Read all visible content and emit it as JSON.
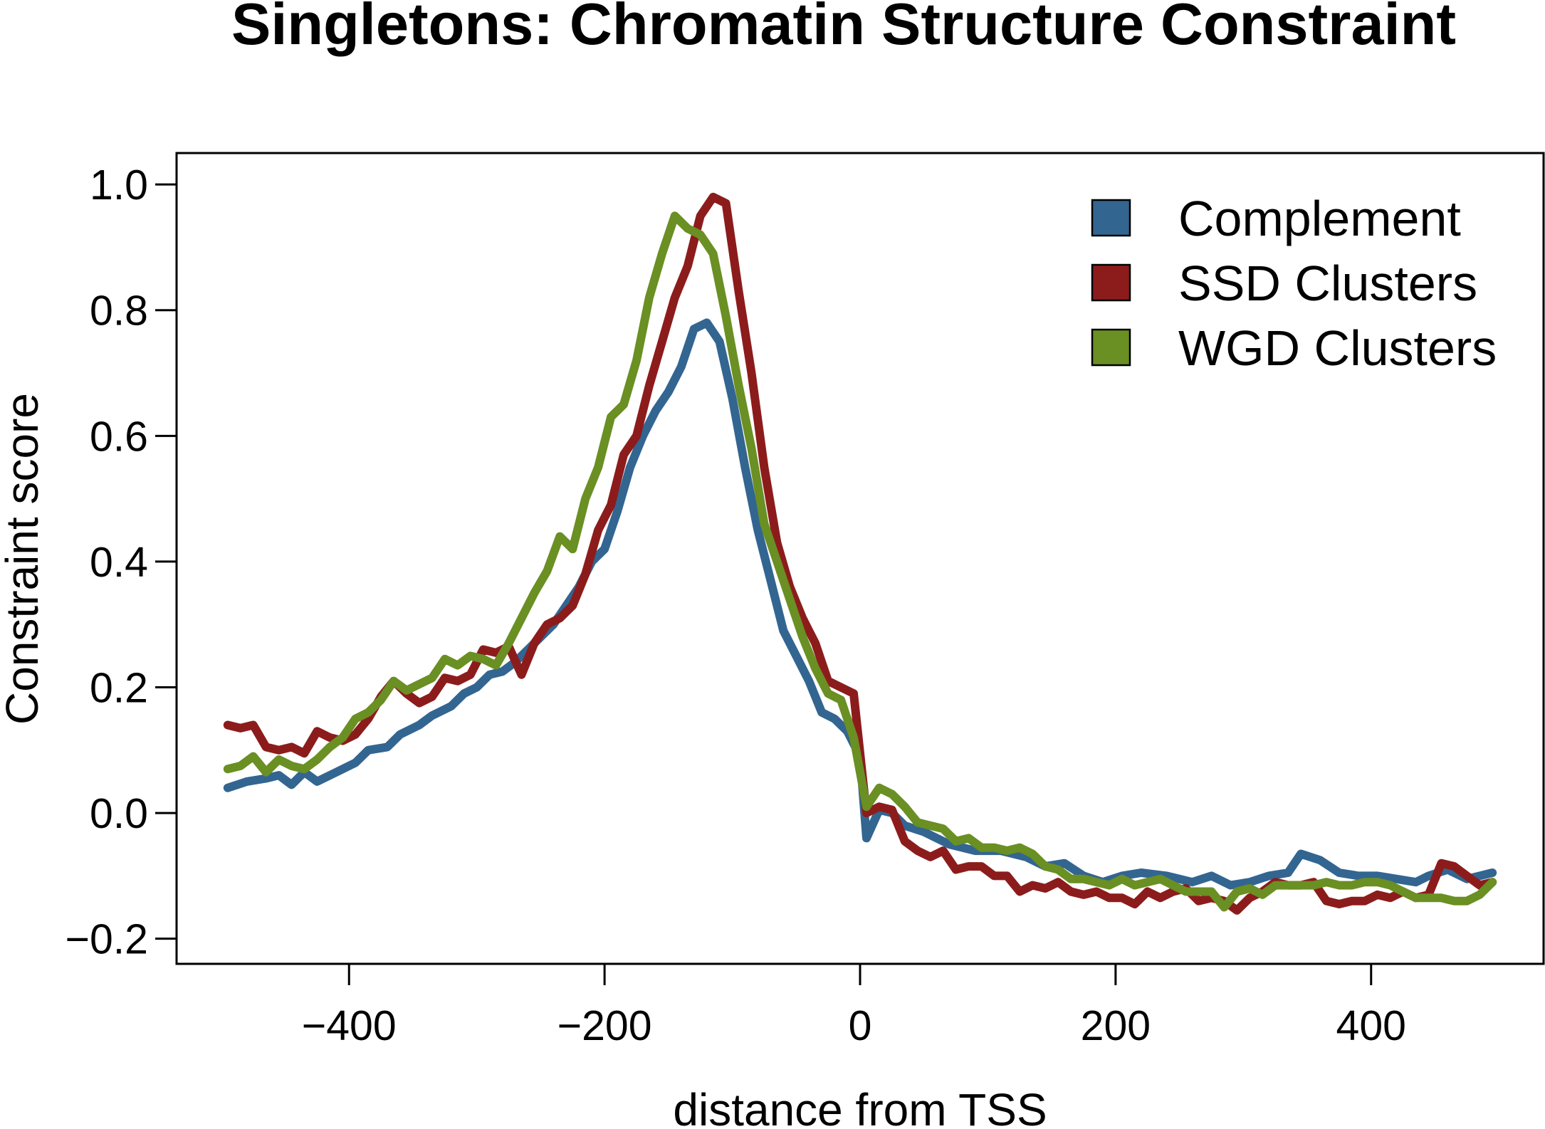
{
  "chart_data": {
    "type": "line",
    "title": "Singletons: Chromatin Structure Constraint",
    "xlabel": "distance from TSS",
    "ylabel": "Constraint score",
    "xlim": [
      -535,
      535
    ],
    "ylim": [
      -0.24,
      1.05
    ],
    "x_ticks": [
      -400,
      -200,
      0,
      200,
      400
    ],
    "x_tick_labels": [
      "−400",
      "−200",
      "0",
      "200",
      "400"
    ],
    "y_ticks": [
      -0.2,
      0.0,
      0.2,
      0.4,
      0.6,
      0.8,
      1.0
    ],
    "y_tick_labels": [
      "−0.2",
      "0.0",
      "0.2",
      "0.4",
      "0.6",
      "0.8",
      "1.0"
    ],
    "grid": false,
    "legend_position": "top-right",
    "series": [
      {
        "name": "Complement",
        "color": "#336591",
        "points": [
          [
            -495,
            0.04
          ],
          [
            -480,
            0.05
          ],
          [
            -465,
            0.055
          ],
          [
            -455,
            0.06
          ],
          [
            -445,
            0.045
          ],
          [
            -435,
            0.065
          ],
          [
            -425,
            0.05
          ],
          [
            -410,
            0.065
          ],
          [
            -395,
            0.08
          ],
          [
            -385,
            0.1
          ],
          [
            -370,
            0.105
          ],
          [
            -360,
            0.125
          ],
          [
            -345,
            0.14
          ],
          [
            -335,
            0.155
          ],
          [
            -320,
            0.17
          ],
          [
            -310,
            0.19
          ],
          [
            -300,
            0.2
          ],
          [
            -290,
            0.22
          ],
          [
            -280,
            0.225
          ],
          [
            -270,
            0.24
          ],
          [
            -260,
            0.26
          ],
          [
            -250,
            0.28
          ],
          [
            -240,
            0.3
          ],
          [
            -230,
            0.33
          ],
          [
            -220,
            0.36
          ],
          [
            -210,
            0.4
          ],
          [
            -200,
            0.42
          ],
          [
            -190,
            0.48
          ],
          [
            -180,
            0.55
          ],
          [
            -170,
            0.6
          ],
          [
            -160,
            0.64
          ],
          [
            -150,
            0.67
          ],
          [
            -140,
            0.71
          ],
          [
            -130,
            0.77
          ],
          [
            -120,
            0.78
          ],
          [
            -110,
            0.75
          ],
          [
            -100,
            0.66
          ],
          [
            -90,
            0.55
          ],
          [
            -80,
            0.45
          ],
          [
            -70,
            0.37
          ],
          [
            -60,
            0.29
          ],
          [
            -50,
            0.25
          ],
          [
            -40,
            0.21
          ],
          [
            -30,
            0.16
          ],
          [
            -20,
            0.15
          ],
          [
            -10,
            0.13
          ],
          [
            0,
            0.09
          ],
          [
            5,
            -0.04
          ],
          [
            15,
            0.005
          ],
          [
            25,
            0.0
          ],
          [
            35,
            -0.02
          ],
          [
            50,
            -0.03
          ],
          [
            70,
            -0.05
          ],
          [
            90,
            -0.06
          ],
          [
            110,
            -0.06
          ],
          [
            130,
            -0.07
          ],
          [
            145,
            -0.085
          ],
          [
            160,
            -0.08
          ],
          [
            175,
            -0.1
          ],
          [
            190,
            -0.11
          ],
          [
            205,
            -0.1
          ],
          [
            220,
            -0.095
          ],
          [
            240,
            -0.1
          ],
          [
            260,
            -0.11
          ],
          [
            275,
            -0.1
          ],
          [
            290,
            -0.115
          ],
          [
            305,
            -0.11
          ],
          [
            320,
            -0.1
          ],
          [
            335,
            -0.095
          ],
          [
            345,
            -0.065
          ],
          [
            360,
            -0.075
          ],
          [
            375,
            -0.095
          ],
          [
            390,
            -0.1
          ],
          [
            405,
            -0.1
          ],
          [
            420,
            -0.105
          ],
          [
            435,
            -0.11
          ],
          [
            445,
            -0.1
          ],
          [
            460,
            -0.09
          ],
          [
            475,
            -0.105
          ],
          [
            485,
            -0.1
          ],
          [
            495,
            -0.095
          ]
        ]
      },
      {
        "name": "SSD Clusters",
        "color": "#8c1c1c",
        "points": [
          [
            -495,
            0.14
          ],
          [
            -485,
            0.135
          ],
          [
            -475,
            0.14
          ],
          [
            -465,
            0.105
          ],
          [
            -455,
            0.1
          ],
          [
            -445,
            0.105
          ],
          [
            -435,
            0.095
          ],
          [
            -425,
            0.13
          ],
          [
            -415,
            0.12
          ],
          [
            -405,
            0.115
          ],
          [
            -395,
            0.125
          ],
          [
            -385,
            0.15
          ],
          [
            -375,
            0.185
          ],
          [
            -365,
            0.21
          ],
          [
            -355,
            0.19
          ],
          [
            -345,
            0.175
          ],
          [
            -335,
            0.185
          ],
          [
            -325,
            0.215
          ],
          [
            -315,
            0.21
          ],
          [
            -305,
            0.22
          ],
          [
            -295,
            0.26
          ],
          [
            -285,
            0.255
          ],
          [
            -275,
            0.265
          ],
          [
            -265,
            0.22
          ],
          [
            -255,
            0.27
          ],
          [
            -245,
            0.3
          ],
          [
            -235,
            0.31
          ],
          [
            -225,
            0.33
          ],
          [
            -215,
            0.38
          ],
          [
            -205,
            0.45
          ],
          [
            -195,
            0.49
          ],
          [
            -185,
            0.57
          ],
          [
            -175,
            0.6
          ],
          [
            -165,
            0.68
          ],
          [
            -155,
            0.75
          ],
          [
            -145,
            0.82
          ],
          [
            -135,
            0.87
          ],
          [
            -125,
            0.95
          ],
          [
            -115,
            0.98
          ],
          [
            -105,
            0.97
          ],
          [
            -95,
            0.83
          ],
          [
            -85,
            0.7
          ],
          [
            -75,
            0.55
          ],
          [
            -65,
            0.43
          ],
          [
            -55,
            0.36
          ],
          [
            -45,
            0.31
          ],
          [
            -35,
            0.27
          ],
          [
            -25,
            0.21
          ],
          [
            -15,
            0.2
          ],
          [
            -5,
            0.19
          ],
          [
            5,
            0.0
          ],
          [
            15,
            0.01
          ],
          [
            25,
            0.005
          ],
          [
            35,
            -0.045
          ],
          [
            45,
            -0.06
          ],
          [
            55,
            -0.07
          ],
          [
            65,
            -0.06
          ],
          [
            75,
            -0.09
          ],
          [
            85,
            -0.085
          ],
          [
            95,
            -0.085
          ],
          [
            105,
            -0.1
          ],
          [
            115,
            -0.1
          ],
          [
            125,
            -0.125
          ],
          [
            135,
            -0.115
          ],
          [
            145,
            -0.12
          ],
          [
            155,
            -0.11
          ],
          [
            165,
            -0.125
          ],
          [
            175,
            -0.13
          ],
          [
            185,
            -0.125
          ],
          [
            195,
            -0.135
          ],
          [
            205,
            -0.135
          ],
          [
            215,
            -0.145
          ],
          [
            225,
            -0.125
          ],
          [
            235,
            -0.135
          ],
          [
            245,
            -0.125
          ],
          [
            255,
            -0.12
          ],
          [
            265,
            -0.14
          ],
          [
            275,
            -0.135
          ],
          [
            285,
            -0.14
          ],
          [
            295,
            -0.155
          ],
          [
            305,
            -0.135
          ],
          [
            315,
            -0.125
          ],
          [
            325,
            -0.11
          ],
          [
            335,
            -0.115
          ],
          [
            345,
            -0.115
          ],
          [
            355,
            -0.11
          ],
          [
            365,
            -0.14
          ],
          [
            375,
            -0.145
          ],
          [
            385,
            -0.14
          ],
          [
            395,
            -0.14
          ],
          [
            405,
            -0.13
          ],
          [
            415,
            -0.135
          ],
          [
            425,
            -0.125
          ],
          [
            435,
            -0.135
          ],
          [
            445,
            -0.13
          ],
          [
            455,
            -0.08
          ],
          [
            465,
            -0.085
          ],
          [
            475,
            -0.1
          ],
          [
            485,
            -0.115
          ],
          [
            495,
            -0.11
          ]
        ]
      },
      {
        "name": "WGD Clusters",
        "color": "#6a8f23",
        "points": [
          [
            -495,
            0.07
          ],
          [
            -485,
            0.075
          ],
          [
            -475,
            0.09
          ],
          [
            -465,
            0.065
          ],
          [
            -455,
            0.085
          ],
          [
            -445,
            0.075
          ],
          [
            -435,
            0.07
          ],
          [
            -425,
            0.085
          ],
          [
            -415,
            0.105
          ],
          [
            -405,
            0.12
          ],
          [
            -395,
            0.15
          ],
          [
            -385,
            0.16
          ],
          [
            -375,
            0.18
          ],
          [
            -365,
            0.21
          ],
          [
            -355,
            0.195
          ],
          [
            -345,
            0.205
          ],
          [
            -335,
            0.215
          ],
          [
            -325,
            0.245
          ],
          [
            -315,
            0.235
          ],
          [
            -305,
            0.25
          ],
          [
            -295,
            0.245
          ],
          [
            -285,
            0.235
          ],
          [
            -275,
            0.27
          ],
          [
            -265,
            0.31
          ],
          [
            -255,
            0.35
          ],
          [
            -245,
            0.385
          ],
          [
            -235,
            0.44
          ],
          [
            -225,
            0.42
          ],
          [
            -215,
            0.5
          ],
          [
            -205,
            0.55
          ],
          [
            -195,
            0.63
          ],
          [
            -185,
            0.65
          ],
          [
            -175,
            0.72
          ],
          [
            -165,
            0.82
          ],
          [
            -155,
            0.89
          ],
          [
            -145,
            0.95
          ],
          [
            -135,
            0.93
          ],
          [
            -125,
            0.92
          ],
          [
            -115,
            0.89
          ],
          [
            -105,
            0.79
          ],
          [
            -95,
            0.68
          ],
          [
            -85,
            0.58
          ],
          [
            -75,
            0.46
          ],
          [
            -65,
            0.4
          ],
          [
            -55,
            0.34
          ],
          [
            -45,
            0.28
          ],
          [
            -35,
            0.23
          ],
          [
            -25,
            0.19
          ],
          [
            -15,
            0.18
          ],
          [
            -5,
            0.12
          ],
          [
            5,
            0.01
          ],
          [
            15,
            0.04
          ],
          [
            25,
            0.03
          ],
          [
            35,
            0.01
          ],
          [
            45,
            -0.015
          ],
          [
            55,
            -0.02
          ],
          [
            65,
            -0.025
          ],
          [
            75,
            -0.045
          ],
          [
            85,
            -0.04
          ],
          [
            95,
            -0.055
          ],
          [
            105,
            -0.055
          ],
          [
            115,
            -0.06
          ],
          [
            125,
            -0.055
          ],
          [
            135,
            -0.065
          ],
          [
            145,
            -0.085
          ],
          [
            155,
            -0.09
          ],
          [
            165,
            -0.105
          ],
          [
            175,
            -0.105
          ],
          [
            185,
            -0.11
          ],
          [
            195,
            -0.115
          ],
          [
            205,
            -0.105
          ],
          [
            215,
            -0.115
          ],
          [
            225,
            -0.11
          ],
          [
            235,
            -0.105
          ],
          [
            245,
            -0.115
          ],
          [
            255,
            -0.125
          ],
          [
            265,
            -0.125
          ],
          [
            275,
            -0.125
          ],
          [
            285,
            -0.15
          ],
          [
            295,
            -0.125
          ],
          [
            305,
            -0.12
          ],
          [
            315,
            -0.13
          ],
          [
            325,
            -0.115
          ],
          [
            335,
            -0.115
          ],
          [
            345,
            -0.115
          ],
          [
            355,
            -0.115
          ],
          [
            365,
            -0.11
          ],
          [
            375,
            -0.115
          ],
          [
            385,
            -0.115
          ],
          [
            395,
            -0.11
          ],
          [
            405,
            -0.11
          ],
          [
            415,
            -0.115
          ],
          [
            425,
            -0.125
          ],
          [
            435,
            -0.135
          ],
          [
            445,
            -0.135
          ],
          [
            455,
            -0.135
          ],
          [
            465,
            -0.14
          ],
          [
            475,
            -0.14
          ],
          [
            485,
            -0.13
          ],
          [
            495,
            -0.11
          ]
        ]
      }
    ]
  }
}
